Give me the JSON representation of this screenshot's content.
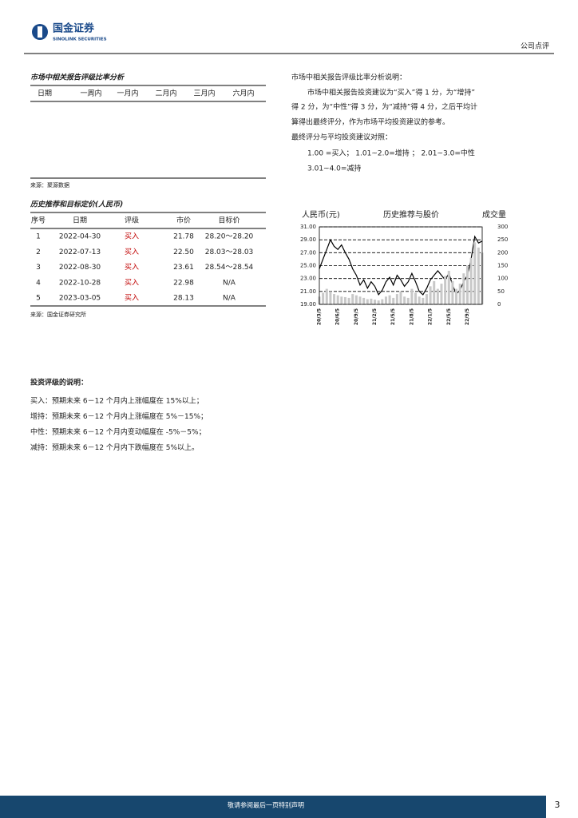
{
  "header": {
    "logo": "国金证券",
    "logo_en": "SINOLINK SECURITIES",
    "section": "公司点评"
  },
  "rating_ratio": {
    "title": "市场中相关报告评级比率分析",
    "columns": [
      "日期",
      "一周内",
      "一月内",
      "二月内",
      "三月内",
      "六月内"
    ],
    "source": "来源：聚源数据"
  },
  "history": {
    "title": "历史推荐和目标定价(人民币)",
    "columns": [
      "序号",
      "日期",
      "评级",
      "市价",
      "目标价"
    ],
    "rows": [
      [
        "1",
        "2022-04-30",
        "买入",
        "21.78",
        "28.20～28.20"
      ],
      [
        "2",
        "2022-07-13",
        "买入",
        "22.50",
        "28.03～28.03"
      ],
      [
        "3",
        "2022-08-30",
        "买入",
        "23.61",
        "28.54～28.54"
      ],
      [
        "4",
        "2022-10-28",
        "买入",
        "22.98",
        "N/A"
      ],
      [
        "5",
        "2023-03-05",
        "买入",
        "28.13",
        "N/A"
      ]
    ],
    "source": "来源：国金证券研究所"
  },
  "explanation": {
    "lines": [
      "市场中相关报告评级比率分析说明：",
      "市场中相关报告投资建议为“买入”得 1 分，为“增持”",
      "得 2 分，为“中性”得 3 分，为“减持”得 4 分，之后平均计",
      "算得出最终评分，作为市场平均投资建议的参考。",
      "最终评分与平均投资建议对照：",
      "1.00  =买入；  1.01~2.0=增持 ；  2.01~3.0=中性",
      "3.01~4.0=减持"
    ]
  },
  "chart_data": {
    "type": "line",
    "title": "历史推荐与股价",
    "y_label": "人民币(元)",
    "y2_label": "成交量",
    "categories": [
      "20/3/5",
      null,
      null,
      null,
      null,
      "20/6/5",
      null,
      null,
      null,
      null,
      "20/9/5",
      null,
      null,
      null,
      null,
      "21/2/5",
      null,
      null,
      null,
      null,
      "21/5/5",
      null,
      null,
      null,
      null,
      "21/8/5",
      null,
      null,
      null,
      null,
      "22/1/5",
      null,
      null,
      null,
      null,
      "22/5/5",
      null,
      null,
      null,
      null,
      "22/9/5",
      null,
      null,
      null,
      null
    ],
    "ylim": [
      19,
      31
    ],
    "yticks": [
      {
        "value": 19,
        "label": "19.00"
      },
      {
        "value": 21,
        "label": "21.00"
      },
      {
        "value": 23,
        "label": "23.00"
      },
      {
        "value": 25,
        "label": "25.00"
      },
      {
        "value": 27,
        "label": "27.00"
      },
      {
        "value": 29,
        "label": "29.00"
      },
      {
        "value": 31,
        "label": "31.00"
      }
    ],
    "y2lim": [
      0,
      300
    ],
    "y2ticks": [
      0,
      50,
      100,
      150,
      200,
      250,
      300
    ],
    "grid": true,
    "series": [
      {
        "name": "股价",
        "color": "#000000",
        "values": [
          24.5,
          26.0,
          27.5,
          29.0,
          28.0,
          27.5,
          28.2,
          27.0,
          26.0,
          24.5,
          23.5,
          22.0,
          22.8,
          21.5,
          22.5,
          21.8,
          20.5,
          21.2,
          22.5,
          23.2,
          22.0,
          23.5,
          22.8,
          21.8,
          22.5,
          23.8,
          22.5,
          21.0,
          20.5,
          21.5,
          22.8,
          23.5,
          24.2,
          23.5,
          22.8,
          23.8,
          22.0,
          20.6,
          21.2,
          22.5,
          23.5,
          26.0,
          29.5,
          28.5,
          28.8
        ]
      },
      {
        "name": "成交量",
        "color": "#c8c8c8",
        "axis": "y2",
        "values": [
          30,
          45,
          60,
          50,
          40,
          35,
          30,
          28,
          25,
          40,
          35,
          30,
          25,
          20,
          22,
          18,
          15,
          20,
          30,
          35,
          25,
          40,
          50,
          30,
          25,
          60,
          45,
          30,
          25,
          40,
          70,
          90,
          60,
          80,
          110,
          130,
          90,
          60,
          80,
          120,
          150,
          180,
          240,
          220,
          200
        ]
      }
    ]
  },
  "rating_desc": {
    "title": "投资评级的说明：",
    "items": [
      "买入：预期未来 6－12 个月内上涨幅度在 15%以上；",
      "增持：预期未来 6－12 个月内上涨幅度在 5%－15%；",
      "中性：预期未来 6－12 个月内变动幅度在 -5%－5%；",
      "减持：预期未来 6－12 个月内下跌幅度在 5%以上。"
    ]
  },
  "footer": {
    "notice": "敬请参阅最后一页特别声明",
    "page": "3"
  }
}
